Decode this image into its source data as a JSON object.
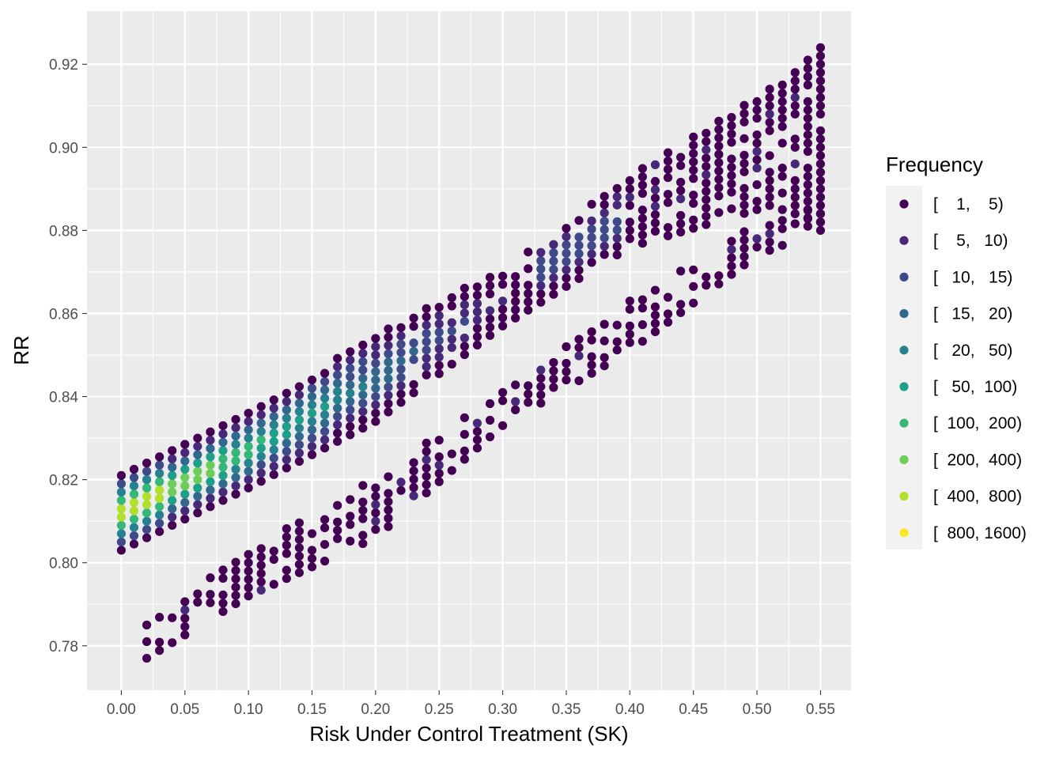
{
  "chart_data": {
    "type": "scatter",
    "xlabel": "Risk Under Control Treatment (SK)",
    "ylabel": "RR",
    "xlim": [
      -0.027,
      0.574
    ],
    "ylim": [
      0.7693,
      0.9328
    ],
    "x_ticks": [
      "0.00",
      "0.05",
      "0.10",
      "0.15",
      "0.20",
      "0.25",
      "0.30",
      "0.35",
      "0.40",
      "0.45",
      "0.50",
      "0.55"
    ],
    "x_tick_values": [
      0,
      0.05,
      0.1,
      0.15,
      0.2,
      0.25,
      0.3,
      0.35,
      0.4,
      0.45,
      0.5,
      0.55
    ],
    "y_ticks": [
      "0.78",
      "0.80",
      "0.82",
      "0.84",
      "0.86",
      "0.88",
      "0.90",
      "0.92"
    ],
    "y_tick_values": [
      0.78,
      0.8,
      0.82,
      0.84,
      0.86,
      0.88,
      0.9,
      0.92
    ],
    "grid": true,
    "legend": {
      "title": "Frequency",
      "position": "right",
      "entries": [
        {
          "label": "[    1,    5)",
          "color": "#440154"
        },
        {
          "label": "[    5,   10)",
          "color": "#482878"
        },
        {
          "label": "[   10,   15)",
          "color": "#3E4A89"
        },
        {
          "label": "[   15,   20)",
          "color": "#31688E"
        },
        {
          "label": "[   20,   50)",
          "color": "#26828E"
        },
        {
          "label": "[   50,  100)",
          "color": "#1F9E89"
        },
        {
          "label": "[  100,  200)",
          "color": "#35B779"
        },
        {
          "label": "[  200,  400)",
          "color": "#6DCD59"
        },
        {
          "label": "[  400,  800)",
          "color": "#B4DE2C"
        },
        {
          "label": "[  800, 1600)",
          "color": "#FDE725"
        }
      ]
    },
    "band_summary": {
      "x_step": 0.01,
      "main_band": [
        {
          "x_from": 0.0,
          "x_to": 0.02,
          "y_min": 0.803,
          "y_max": 0.821
        },
        {
          "x_from": 0.1,
          "y_min": 0.818,
          "y_max": 0.836
        },
        {
          "x_from": 0.2,
          "y_min": 0.834,
          "y_max": 0.855
        },
        {
          "x_from": 0.3,
          "y_min": 0.857,
          "y_max": 0.871
        },
        {
          "x_from": 0.4,
          "y_min": 0.876,
          "y_max": 0.893
        },
        {
          "x_from": 0.5,
          "y_min": 0.885,
          "y_max": 0.912
        },
        {
          "x_from": 0.55,
          "y_min": 0.88,
          "y_max": 0.924
        }
      ],
      "lower_band": [
        {
          "x_from": 0.02,
          "y_min": 0.777,
          "y_max": 0.786
        },
        {
          "x_from": 0.1,
          "y_min": 0.792,
          "y_max": 0.803
        },
        {
          "x_from": 0.2,
          "y_min": 0.806,
          "y_max": 0.821
        },
        {
          "x_from": 0.3,
          "y_min": 0.833,
          "y_max": 0.841
        },
        {
          "x_from": 0.4,
          "y_min": 0.851,
          "y_max": 0.863
        },
        {
          "x_from": 0.5,
          "y_min": 0.874,
          "y_max": 0.883
        },
        {
          "x_from": 0.55,
          "y_min": 0.88,
          "y_max": 0.886
        }
      ]
    }
  }
}
